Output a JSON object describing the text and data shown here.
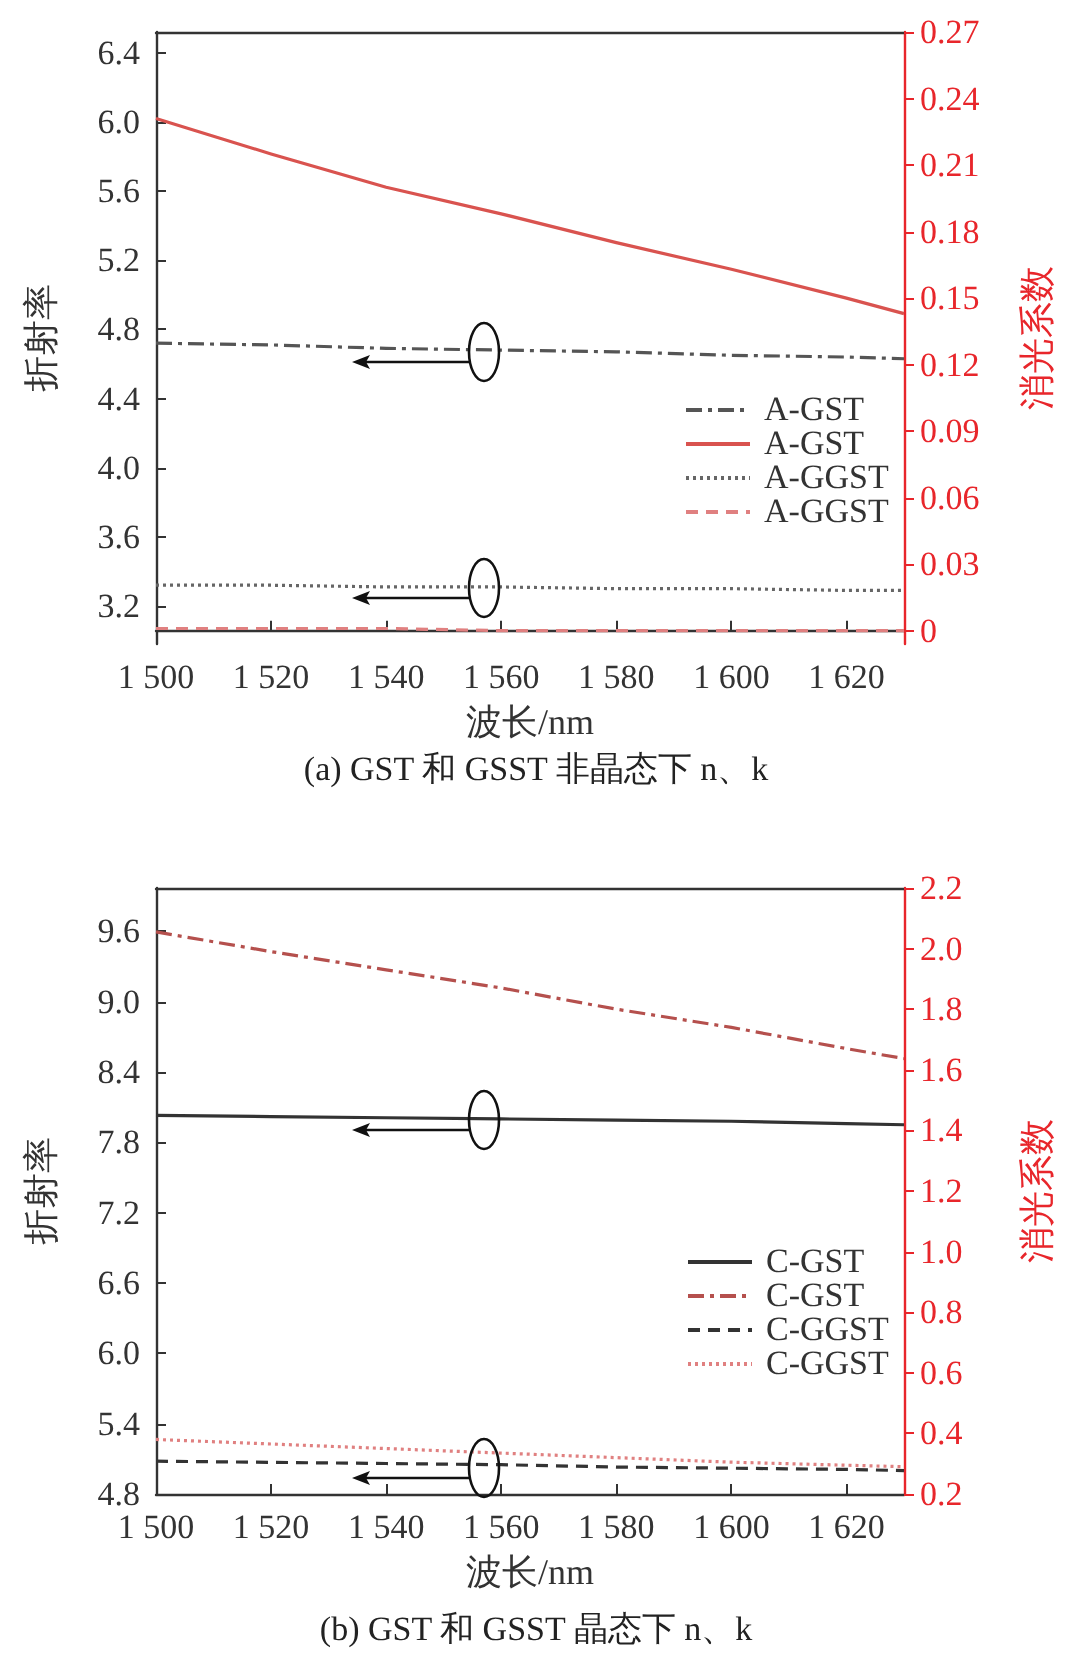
{
  "chart_data": [
    {
      "type": "line",
      "title": "(a) GST 和 GSST 非晶态下 n、k",
      "xlabel": "波长/nm",
      "ylabel": "折射率",
      "y2label": "消光系数",
      "xlim": [
        1500,
        1630
      ],
      "xticks": [
        {
          "value": 1500,
          "label": "1 500"
        },
        {
          "value": 1520,
          "label": "1 520"
        },
        {
          "value": 1540,
          "label": "1 540"
        },
        {
          "value": 1560,
          "label": "1 560"
        },
        {
          "value": 1580,
          "label": "1 580"
        },
        {
          "value": 1600,
          "label": "1 600"
        },
        {
          "value": 1620,
          "label": "1 620"
        }
      ],
      "ylim": [
        2.98,
        6.52
      ],
      "yticks": [
        3.2,
        3.6,
        {
          "value": 4,
          "label": "4.0"
        },
        4.4,
        4.8,
        5.2,
        5.6,
        {
          "value": 6,
          "label": "6.0"
        },
        6.4
      ],
      "y2lim": [
        -0.006,
        0.27
      ],
      "y2ticks": [
        0,
        0.03,
        0.06,
        0.09,
        0.12,
        0.15,
        0.18,
        0.21,
        0.24,
        0.27
      ],
      "x": [
        1500,
        1520,
        1540,
        1560,
        1580,
        1600,
        1620,
        1630
      ],
      "grid": false,
      "legend": "right",
      "marker": "none",
      "series": [
        {
          "name": "A-GST",
          "color": "#555555",
          "line_style": "dashdot",
          "values": [
            4.72,
            4.71,
            4.69,
            4.68,
            4.67,
            4.65,
            4.64,
            4.63
          ]
        },
        {
          "name": "A-GST",
          "color": "#d9534f",
          "line_style": "solid",
          "axis": "y2",
          "values": [
            0.231,
            0.215,
            0.2,
            0.188,
            0.175,
            0.163,
            0.15,
            0.143
          ]
        },
        {
          "name": "A-GGST",
          "color": "#666666",
          "line_style": "dotted",
          "values": [
            3.32,
            3.32,
            3.31,
            3.31,
            3.3,
            3.3,
            3.29,
            3.29
          ]
        },
        {
          "name": "A-GGST",
          "color": "#e08080",
          "line_style": "dashed",
          "axis": "y2",
          "values": [
            0.001,
            0.001,
            0.001,
            0,
            0,
            0,
            0,
            0
          ]
        }
      ]
    },
    {
      "type": "line",
      "title": "(b) GST 和 GSST 晶态下 n、k",
      "xlabel": "波长/nm",
      "ylabel": "折射率",
      "y2label": "消光系数",
      "xlim": [
        1500,
        1630
      ],
      "xticks": [
        {
          "value": 1500,
          "label": "1 500"
        },
        {
          "value": 1520,
          "label": "1 520"
        },
        {
          "value": 1540,
          "label": "1 540"
        },
        {
          "value": 1560,
          "label": "1 560"
        },
        {
          "value": 1580,
          "label": "1 580"
        },
        {
          "value": 1600,
          "label": "1 600"
        },
        {
          "value": 1620,
          "label": "1 620"
        }
      ],
      "ylim": [
        4.8,
        9.97
      ],
      "yticks": [
        4.8,
        5.4,
        {
          "value": 6,
          "label": "6.0"
        },
        6.6,
        7.2,
        7.8,
        8.4,
        {
          "value": 9,
          "label": "9.0"
        },
        9.6
      ],
      "y2lim": [
        0.2,
        2.2
      ],
      "y2ticks": [
        0.2,
        0.4,
        0.6,
        0.8,
        {
          "value": 1,
          "label": "1.0"
        },
        1.2,
        1.4,
        1.6,
        1.8,
        {
          "value": 2,
          "label": "2.0"
        },
        2.2
      ],
      "x": [
        1500,
        1520,
        1540,
        1560,
        1580,
        1600,
        1620,
        1630
      ],
      "grid": false,
      "legend": "right",
      "marker": "none",
      "series": [
        {
          "name": "C-GST",
          "color": "#333333",
          "line_style": "solid",
          "values": [
            8.03,
            8.02,
            8.01,
            8.0,
            7.99,
            7.98,
            7.96,
            7.95
          ]
        },
        {
          "name": "C-GST",
          "color": "#b5504d",
          "line_style": "dashdot",
          "axis": "y2",
          "values": [
            2.055,
            1.99,
            1.93,
            1.87,
            1.8,
            1.74,
            1.67,
            1.637
          ]
        },
        {
          "name": "C-GGST",
          "color": "#333333",
          "line_style": "dashed",
          "values": [
            5.08,
            5.07,
            5.06,
            5.05,
            5.03,
            5.02,
            5.01,
            5.0
          ]
        },
        {
          "name": "C-GGST",
          "color": "#e08080",
          "line_style": "dotted",
          "axis": "y2",
          "values": [
            0.38,
            0.365,
            0.35,
            0.335,
            0.32,
            0.305,
            0.295,
            0.29
          ]
        }
      ]
    }
  ]
}
